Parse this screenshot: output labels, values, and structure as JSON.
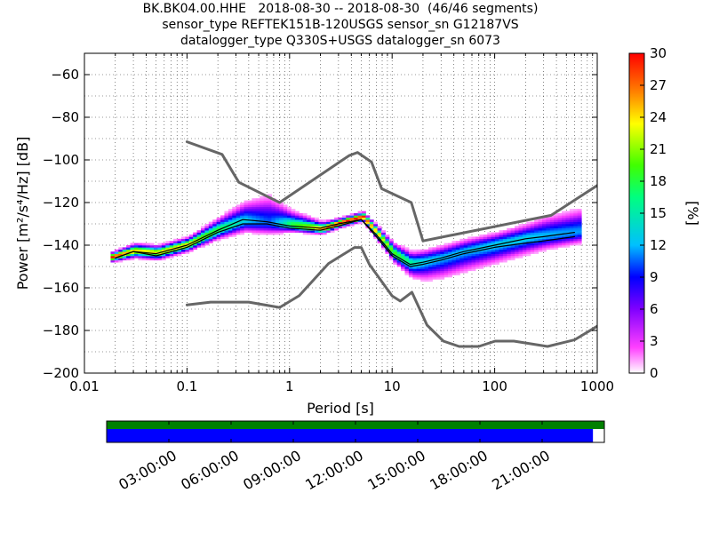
{
  "title_lines": [
    "BK.BK04.00.HHE   2018-08-30 -- 2018-08-30  (46/46 segments)",
    "sensor_type REFTEK151B-120USGS sensor_sn G12187VS",
    "datalogger_type Q330S+USGS datalogger_sn 6073"
  ],
  "chart_data": [
    {
      "type": "heatmap",
      "title": "BK.BK04.00.HHE   2018-08-30 -- 2018-08-30  (46/46 segments)",
      "xlabel": "Period [s]",
      "ylabel": "Power [m²/s⁴/Hz] [dB]",
      "x_scale": "log",
      "xlim": [
        0.01,
        1000
      ],
      "ylim": [
        -200,
        -50
      ],
      "x_ticks": [
        "0.01",
        "0.1",
        "1",
        "10",
        "100",
        "1000"
      ],
      "x_tick_values": [
        0.01,
        0.1,
        1,
        10,
        100,
        1000
      ],
      "y_ticks": [
        "−200",
        "−180",
        "−160",
        "−140",
        "−120",
        "−100",
        "−80",
        "−60"
      ],
      "y_tick_values": [
        -200,
        -180,
        -160,
        -140,
        -120,
        -100,
        -80,
        -60
      ],
      "grid": "dotted vertical lines at period bins, dotted horizontal lines every 10 dB",
      "colorbar": {
        "label": "[%]",
        "range": [
          0,
          30
        ],
        "ticks": [
          "0",
          "3",
          "6",
          "9",
          "12",
          "15",
          "18",
          "21",
          "24",
          "27",
          "30"
        ],
        "tick_values": [
          0,
          3,
          6,
          9,
          12,
          15,
          18,
          21,
          24,
          27,
          30
        ],
        "colormap": [
          "#ffffff",
          "#ff40ff",
          "#8000ff",
          "#0000ff",
          "#00c0ff",
          "#00ff80",
          "#40ff00",
          "#ffff00",
          "#ff8000",
          "#ff0000"
        ]
      },
      "series": [
        {
          "name": "",
          "role": "high noise model",
          "color": "#666666",
          "x": [
            0.1,
            0.22,
            0.32,
            0.8,
            3.8,
            4.6,
            6.3,
            7.9,
            15.4,
            20,
            354.8,
            1000
          ],
          "y": [
            -91.5,
            -97.4,
            -110.5,
            -120,
            -98,
            -96.5,
            -101,
            -113.5,
            -120,
            -138,
            -126,
            -112
          ]
        },
        {
          "name": "",
          "role": "low noise model",
          "color": "#666666",
          "x": [
            0.1,
            0.17,
            0.4,
            0.8,
            1.24,
            2.4,
            4.3,
            5,
            6,
            10,
            12,
            15.6,
            21.9,
            31.6,
            45,
            70,
            101,
            154,
            328,
            600,
            1000
          ],
          "y": [
            -168,
            -166.7,
            -166.7,
            -169.2,
            -163.7,
            -148.6,
            -141.1,
            -141.1,
            -149,
            -163.8,
            -166.2,
            -162.1,
            -177.5,
            -185,
            -187.5,
            -187.5,
            -185,
            -185,
            -187.5,
            -184.4,
            -178
          ]
        },
        {
          "name": "",
          "role": "mean",
          "color": "#000000",
          "x": [
            0.02,
            0.03,
            0.05,
            0.1,
            0.2,
            0.35,
            0.6,
            1,
            2,
            3,
            5,
            7,
            10,
            15,
            20,
            30,
            50,
            100,
            200,
            300,
            600
          ],
          "y": [
            -146,
            -143,
            -144,
            -140,
            -133,
            -128,
            -129,
            -131,
            -132,
            -130,
            -128,
            -135,
            -144,
            -149,
            -148,
            -146,
            -143,
            -140,
            -137,
            -136,
            -134
          ]
        },
        {
          "name": "",
          "role": "mode",
          "color": "#000000",
          "x": [
            0.02,
            0.03,
            0.05,
            0.1,
            0.2,
            0.35,
            0.6,
            1,
            2,
            3,
            5,
            7,
            10,
            15,
            20,
            30,
            50,
            100,
            200,
            300,
            600
          ],
          "y": [
            -146,
            -143,
            -145,
            -141,
            -134,
            -130,
            -130,
            -132,
            -133,
            -131,
            -128,
            -136,
            -145,
            -150,
            -149,
            -147,
            -144,
            -141,
            -139,
            -138,
            -136
          ]
        }
      ],
      "density_bands": {
        "x": [
          0.018,
          0.03,
          0.05,
          0.1,
          0.2,
          0.35,
          0.6,
          1,
          2,
          3,
          5,
          7,
          10,
          15,
          20,
          30,
          50,
          100,
          200,
          300,
          700
        ],
        "center": [
          -146,
          -143,
          -144,
          -140,
          -133,
          -129,
          -130,
          -131,
          -133,
          -130,
          -127,
          -135,
          -144,
          -149,
          -148,
          -146,
          -143,
          -140,
          -137,
          -136,
          -134
        ],
        "spread_low": [
          2,
          3,
          3,
          3,
          4,
          5,
          5,
          3,
          2,
          2,
          2,
          3,
          4,
          6,
          8,
          9,
          9,
          8,
          7,
          6,
          5
        ],
        "spread_high": [
          2,
          3,
          3,
          3,
          5,
          8,
          12,
          6,
          3,
          2,
          2,
          3,
          4,
          5,
          5,
          5,
          5,
          5,
          6,
          8,
          10
        ]
      }
    },
    {
      "type": "timeline",
      "name": "data availability",
      "ticks": [
        "03:00:00",
        "06:00:00",
        "09:00:00",
        "12:00:00",
        "15:00:00",
        "18:00:00",
        "21:00:00"
      ],
      "tick_hours": [
        3,
        6,
        9,
        12,
        15,
        18,
        21
      ],
      "range_hours": [
        0,
        24
      ],
      "bars": [
        {
          "color": "#008000",
          "start_h": 0,
          "end_h": 24
        },
        {
          "color": "#0000ff",
          "start_h": 0,
          "end_h": 23.45
        }
      ]
    }
  ]
}
